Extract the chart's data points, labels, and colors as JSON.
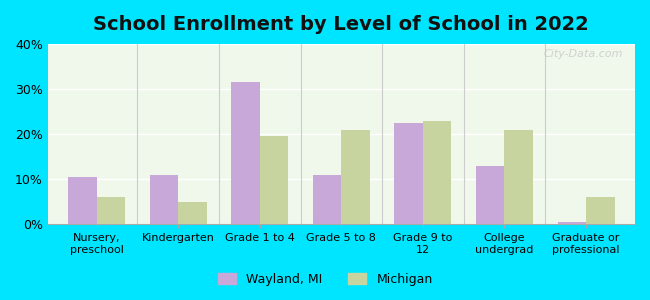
{
  "title": "School Enrollment by Level of School in 2022",
  "categories": [
    "Nursery,\npreschool",
    "Kindergarten",
    "Grade 1 to 4",
    "Grade 5 to 8",
    "Grade 9 to\n12",
    "College\nundergrad",
    "Graduate or\nprofessional"
  ],
  "wayland_values": [
    10.5,
    11.0,
    31.5,
    11.0,
    22.5,
    13.0,
    0.5
  ],
  "michigan_values": [
    6.0,
    5.0,
    19.5,
    21.0,
    23.0,
    21.0,
    6.0
  ],
  "wayland_color": "#c8a8d8",
  "michigan_color": "#c8d4a0",
  "ylim": [
    0,
    40
  ],
  "yticks": [
    0,
    10,
    20,
    30,
    40
  ],
  "ytick_labels": [
    "0%",
    "10%",
    "20%",
    "30%",
    "40%"
  ],
  "background_outer": "#00e5ff",
  "background_plot": "#f0f8ec",
  "watermark": "City-Data.com",
  "legend_wayland": "Wayland, MI",
  "legend_michigan": "Michigan",
  "title_fontsize": 14,
  "bar_width": 0.35
}
